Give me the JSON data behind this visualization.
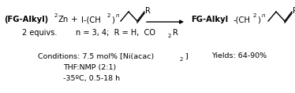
{
  "bg_color": "#ffffff",
  "figsize": [
    3.74,
    1.19
  ],
  "dpi": 100,
  "xlim": [
    0,
    374
  ],
  "ylim": [
    0,
    119
  ]
}
